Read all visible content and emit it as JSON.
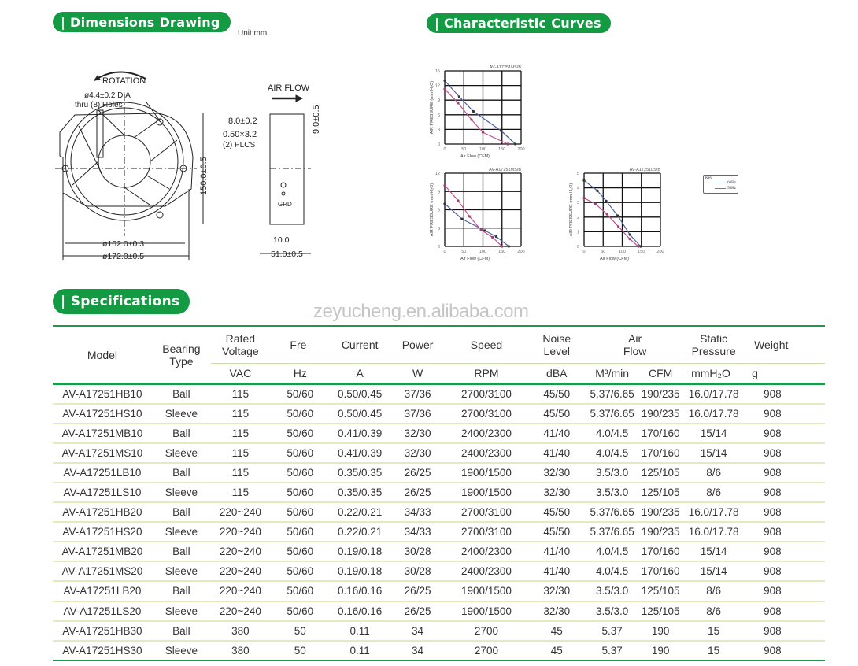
{
  "sections": {
    "dimensions_title": "| Dimensions Drawing",
    "curves_title": "| Characteristic Curves",
    "specs_title": "| Specifications",
    "unit": "Unit:mm",
    "accent_color": "#139a43"
  },
  "drawing": {
    "rotation": "ROTATION",
    "hole_line1": "ø4.4±0.2 DIA",
    "hole_line2": "thru (8) Holes",
    "height_dim": "150.0±0.5",
    "dia_inner": "ø162.0±0.3",
    "dia_outer": "ø172.0±0.5",
    "air_flow": "AIR FLOW",
    "terminal_w": "8.0±0.2",
    "terminal_size": "0.50×3.2",
    "plcs": "(2) PLCS",
    "terminal_h": "9.0±0.5",
    "grd": "GRD",
    "side_10": "10.0",
    "depth": "51.0±0.5"
  },
  "legend": {
    "title": "Key",
    "items": [
      {
        "label": "60Hz",
        "color": "#4f5f9c"
      },
      {
        "label": "50Hz",
        "color": "#c4508e"
      }
    ]
  },
  "chart_data": [
    {
      "type": "line",
      "title": "AV-A17251HS/B",
      "xlabel": "Air Flow (CFM)",
      "ylabel": "AIR PRESSURE (mm-H₂O)",
      "xlim": [
        0,
        200
      ],
      "ylim": [
        0,
        15
      ],
      "xticks": [
        0,
        50,
        100,
        150,
        200
      ],
      "yticks": [
        0,
        3,
        6,
        9,
        12,
        15
      ],
      "grid": true,
      "series": [
        {
          "name": "60Hz",
          "color": "#4f5f9c",
          "x": [
            0,
            38,
            75,
            148,
            185
          ],
          "y": [
            13,
            9.7,
            6.7,
            2.7,
            0
          ]
        },
        {
          "name": "50Hz",
          "color": "#c4508e",
          "x": [
            0,
            35,
            70,
            100,
            165
          ],
          "y": [
            11.3,
            8.4,
            5,
            2.4,
            0
          ]
        }
      ]
    },
    {
      "type": "line",
      "title": "AV-A17251MS/B",
      "xlabel": "Air Flow (CFM)",
      "ylabel": "AIR PRESSURE (mm-H₂O)",
      "xlim": [
        0,
        200
      ],
      "ylim": [
        0,
        12
      ],
      "xticks": [
        0,
        50,
        100,
        150,
        200
      ],
      "yticks": [
        0,
        3,
        6,
        9,
        12
      ],
      "grid": true,
      "series": [
        {
          "name": "60Hz",
          "color": "#4f5f9c",
          "x": [
            0,
            45,
            105,
            135,
            168
          ],
          "y": [
            7,
            4.5,
            2.6,
            1.6,
            0
          ]
        },
        {
          "name": "50Hz",
          "color": "#c4508e",
          "x": [
            0,
            35,
            65,
            95,
            125,
            150
          ],
          "y": [
            10,
            7.5,
            4.9,
            2.7,
            1.5,
            0
          ]
        }
      ]
    },
    {
      "type": "line",
      "title": "AV-A17251LS/B",
      "xlabel": "Air Flow (CFM)",
      "ylabel": "AIR PRESSURE (mm-H₂O)",
      "xlim": [
        0,
        200
      ],
      "ylim": [
        0,
        5
      ],
      "xticks": [
        0,
        50,
        100,
        150,
        200
      ],
      "yticks": [
        0,
        1,
        2,
        3,
        4,
        5
      ],
      "grid": true,
      "series": [
        {
          "name": "60Hz",
          "color": "#4f5f9c",
          "x": [
            0,
            35,
            58,
            88,
            120,
            148
          ],
          "y": [
            4.5,
            3.8,
            3.1,
            2.1,
            0.8,
            0
          ]
        },
        {
          "name": "50Hz",
          "color": "#c4508e",
          "x": [
            0,
            30,
            60,
            90,
            120,
            142
          ],
          "y": [
            3.3,
            2.9,
            2.2,
            1.35,
            0.5,
            0
          ]
        }
      ]
    }
  ],
  "watermark": "zeyucheng.en.alibaba.com",
  "table": {
    "headers": {
      "model": "Model",
      "bearing": "Bearing Type",
      "voltage": "Rated Voltage",
      "freq": "Fre-",
      "current": "Current",
      "power": "Power",
      "speed": "Speed",
      "noise": "Noise Level",
      "airflow": "Air Flow",
      "pressure": "Static Pressure",
      "weight": "Weight"
    },
    "units": [
      "VAC",
      "Hz",
      "A",
      "W",
      "RPM",
      "dBA",
      "M³/min",
      "CFM",
      "mmH₂O",
      "g"
    ],
    "rows": [
      [
        "AV-A17251HB10",
        "Ball",
        "115",
        "50/60",
        "0.50/0.45",
        "37/36",
        "2700/3100",
        "45/50",
        "5.37/6.65",
        "190/235",
        "16.0/17.78",
        "908"
      ],
      [
        "AV-A17251HS10",
        "Sleeve",
        "115",
        "50/60",
        "0.50/0.45",
        "37/36",
        "2700/3100",
        "45/50",
        "5.37/6.65",
        "190/235",
        "16.0/17.78",
        "908"
      ],
      [
        "AV-A17251MB10",
        "Ball",
        "115",
        "50/60",
        "0.41/0.39",
        "32/30",
        "2400/2300",
        "41/40",
        "4.0/4.5",
        "170/160",
        "15/14",
        "908"
      ],
      [
        "AV-A17251MS10",
        "Sleeve",
        "115",
        "50/60",
        "0.41/0.39",
        "32/30",
        "2400/2300",
        "41/40",
        "4.0/4.5",
        "170/160",
        "15/14",
        "908"
      ],
      [
        "AV-A17251LB10",
        "Ball",
        "115",
        "50/60",
        "0.35/0.35",
        "26/25",
        "1900/1500",
        "32/30",
        "3.5/3.0",
        "125/105",
        "8/6",
        "908"
      ],
      [
        "AV-A17251LS10",
        "Sleeve",
        "115",
        "50/60",
        "0.35/0.35",
        "26/25",
        "1900/1500",
        "32/30",
        "3.5/3.0",
        "125/105",
        "8/6",
        "908"
      ],
      [
        "AV-A17251HB20",
        "Ball",
        "220~240",
        "50/60",
        "0.22/0.21",
        "34/33",
        "2700/3100",
        "45/50",
        "5.37/6.65",
        "190/235",
        "16.0/17.78",
        "908"
      ],
      [
        "AV-A17251HS20",
        "Sleeve",
        "220~240",
        "50/60",
        "0.22/0.21",
        "34/33",
        "2700/3100",
        "45/50",
        "5.37/6.65",
        "190/235",
        "16.0/17.78",
        "908"
      ],
      [
        "AV-A17251MB20",
        "Ball",
        "220~240",
        "50/60",
        "0.19/0.18",
        "30/28",
        "2400/2300",
        "41/40",
        "4.0/4.5",
        "170/160",
        "15/14",
        "908"
      ],
      [
        "AV-A17251MS20",
        "Sleeve",
        "220~240",
        "50/60",
        "0.19/0.18",
        "30/28",
        "2400/2300",
        "41/40",
        "4.0/4.5",
        "170/160",
        "15/14",
        "908"
      ],
      [
        "AV-A17251LB20",
        "Ball",
        "220~240",
        "50/60",
        "0.16/0.16",
        "26/25",
        "1900/1500",
        "32/30",
        "3.5/3.0",
        "125/105",
        "8/6",
        "908"
      ],
      [
        "AV-A17251LS20",
        "Sleeve",
        "220~240",
        "50/60",
        "0.16/0.16",
        "26/25",
        "1900/1500",
        "32/30",
        "3.5/3.0",
        "125/105",
        "8/6",
        "908"
      ],
      [
        "AV-A17251HB30",
        "Ball",
        "380",
        "50",
        "0.11",
        "34",
        "2700",
        "45",
        "5.37",
        "190",
        "15",
        "908"
      ],
      [
        "AV-A17251HS30",
        "Sleeve",
        "380",
        "50",
        "0.11",
        "34",
        "2700",
        "45",
        "5.37",
        "190",
        "15",
        "908"
      ]
    ]
  }
}
